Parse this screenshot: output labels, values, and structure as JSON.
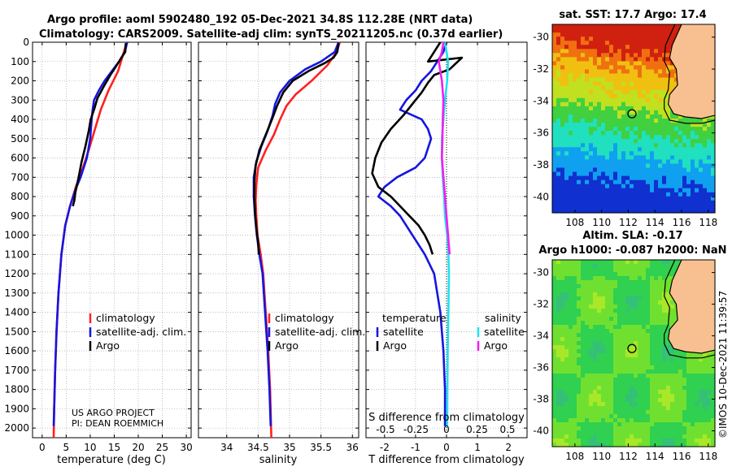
{
  "titles": {
    "line1": "Argo profile: aoml 5902480_192 05-Dec-2021 34.8S 112.28E (NRT data)",
    "line2": "Climatology: CARS2009. Satellite-adj clim: synTS_20211205.nc (0.37d earlier)"
  },
  "credits": {
    "project": "US ARGO PROJECT",
    "pi": "PI: DEAN ROEMMICH",
    "imos": "©IMOS 10-Dec-2021 11:39:57"
  },
  "colors": {
    "climatology": "#ff2020",
    "satellite": "#1515e0",
    "argo": "#000000",
    "sal_satellite": "#20e0f0",
    "sal_argo": "#f020f0",
    "land": "#f8c090"
  },
  "chart_data": [
    {
      "type": "line",
      "panel": "temperature",
      "xlabel": "temperature (deg C)",
      "ylabel": "depth",
      "xlim": [
        -2,
        31
      ],
      "ylim": [
        0,
        2050
      ],
      "y_reversed": true,
      "xticks": [
        "0",
        "5",
        "10",
        "15",
        "20",
        "25",
        "30"
      ],
      "yticks": [
        "0",
        "100",
        "200",
        "300",
        "400",
        "500",
        "600",
        "700",
        "800",
        "900",
        "1000",
        "1100",
        "1200",
        "1300",
        "1400",
        "1500",
        "1600",
        "1700",
        "1800",
        "1900",
        "2000"
      ],
      "legend": [
        "climatology",
        "satellite-adj. clim.",
        "Argo"
      ],
      "series": [
        {
          "name": "climatology",
          "points": [
            [
              17.6,
              0
            ],
            [
              17.0,
              50
            ],
            [
              15.8,
              150
            ],
            [
              13.8,
              250
            ],
            [
              12.2,
              350
            ],
            [
              11.0,
              450
            ],
            [
              9.8,
              550
            ],
            [
              8.5,
              650
            ],
            [
              7.0,
              750
            ],
            [
              5.8,
              850
            ],
            [
              4.8,
              950
            ],
            [
              4.0,
              1100
            ],
            [
              3.4,
              1300
            ],
            [
              3.0,
              1500
            ],
            [
              2.7,
              1700
            ],
            [
              2.5,
              1900
            ],
            [
              2.4,
              2050
            ]
          ]
        },
        {
          "name": "satellite-adj. clim.",
          "points": [
            [
              17.7,
              0
            ],
            [
              17.2,
              50
            ],
            [
              16.0,
              100
            ],
            [
              14.5,
              150
            ],
            [
              13.0,
              200
            ],
            [
              11.8,
              250
            ],
            [
              10.8,
              300
            ],
            [
              10.5,
              350
            ],
            [
              10.3,
              400
            ],
            [
              10.0,
              500
            ],
            [
              9.3,
              600
            ],
            [
              8.0,
              700
            ],
            [
              7.0,
              760
            ],
            [
              5.8,
              850
            ],
            [
              4.8,
              950
            ],
            [
              4.0,
              1100
            ],
            [
              3.4,
              1300
            ],
            [
              3.0,
              1500
            ],
            [
              2.7,
              1700
            ],
            [
              2.5,
              1900
            ],
            [
              2.4,
              1990
            ]
          ]
        },
        {
          "name": "Argo",
          "points": [
            [
              17.4,
              5
            ],
            [
              17.3,
              50
            ],
            [
              16.5,
              80
            ],
            [
              15.5,
              120
            ],
            [
              14.2,
              170
            ],
            [
              12.8,
              230
            ],
            [
              11.5,
              290
            ],
            [
              10.8,
              350
            ],
            [
              10.1,
              400
            ],
            [
              9.7,
              460
            ],
            [
              9.0,
              540
            ],
            [
              8.2,
              620
            ],
            [
              7.6,
              700
            ],
            [
              6.9,
              780
            ],
            [
              6.7,
              820
            ],
            [
              6.4,
              850
            ]
          ]
        }
      ]
    },
    {
      "type": "line",
      "panel": "salinity",
      "xlabel": "salinity",
      "ylabel": "depth",
      "xlim": [
        33.55,
        36.1
      ],
      "ylim": [
        0,
        2050
      ],
      "y_reversed": true,
      "xticks": [
        "34",
        "34.5",
        "35",
        "35.5",
        "36"
      ],
      "legend": [
        "climatology",
        "satellite-adj. clim.",
        "Argo"
      ],
      "series": [
        {
          "name": "climatology",
          "points": [
            [
              35.8,
              0
            ],
            [
              35.75,
              50
            ],
            [
              35.6,
              120
            ],
            [
              35.35,
              200
            ],
            [
              35.1,
              270
            ],
            [
              34.95,
              330
            ],
            [
              34.85,
              400
            ],
            [
              34.75,
              480
            ],
            [
              34.62,
              560
            ],
            [
              34.5,
              650
            ],
            [
              34.47,
              740
            ],
            [
              34.46,
              820
            ],
            [
              34.47,
              900
            ],
            [
              34.49,
              1000
            ],
            [
              34.54,
              1100
            ],
            [
              34.58,
              1200
            ],
            [
              34.62,
              1400
            ],
            [
              34.66,
              1600
            ],
            [
              34.69,
              1800
            ],
            [
              34.71,
              2050
            ]
          ]
        },
        {
          "name": "satellite-adj. clim.",
          "points": [
            [
              35.78,
              0
            ],
            [
              35.72,
              50
            ],
            [
              35.5,
              100
            ],
            [
              35.25,
              140
            ],
            [
              35.0,
              200
            ],
            [
              34.85,
              260
            ],
            [
              34.77,
              320
            ],
            [
              34.73,
              380
            ],
            [
              34.65,
              460
            ],
            [
              34.55,
              540
            ],
            [
              34.47,
              620
            ],
            [
              34.43,
              700
            ],
            [
              34.43,
              800
            ],
            [
              34.45,
              900
            ],
            [
              34.48,
              1000
            ],
            [
              34.52,
              1100
            ],
            [
              34.57,
              1200
            ],
            [
              34.61,
              1400
            ],
            [
              34.65,
              1600
            ],
            [
              34.68,
              1800
            ],
            [
              34.7,
              1990
            ]
          ]
        },
        {
          "name": "Argo",
          "points": [
            [
              35.78,
              5
            ],
            [
              35.76,
              50
            ],
            [
              35.7,
              80
            ],
            [
              35.55,
              110
            ],
            [
              35.3,
              150
            ],
            [
              35.05,
              200
            ],
            [
              34.9,
              260
            ],
            [
              34.8,
              330
            ],
            [
              34.72,
              400
            ],
            [
              34.62,
              480
            ],
            [
              34.52,
              560
            ],
            [
              34.46,
              640
            ],
            [
              34.44,
              720
            ],
            [
              34.44,
              800
            ],
            [
              34.45,
              880
            ],
            [
              34.47,
              960
            ],
            [
              34.5,
              1040
            ],
            [
              34.51,
              1100
            ]
          ]
        }
      ]
    },
    {
      "type": "line",
      "panel": "difference",
      "xlabel": "T difference from climatology",
      "xlabel_top": "S difference from climatology",
      "ylabel": "depth",
      "xlim": [
        -2.6,
        2.6
      ],
      "ylim": [
        0,
        2050
      ],
      "y_reversed": true,
      "xticks": [
        "-2",
        "-1",
        "0",
        "1",
        "2"
      ],
      "xticks_top": [
        "-0.5",
        "-0.25",
        "0",
        "0.25",
        "0.5"
      ],
      "legend_headers": [
        "temperature",
        "salinity"
      ],
      "legend": [
        "satellite",
        "Argo",
        "satellite",
        "Argo"
      ],
      "series": [
        {
          "name": "temperature satellite",
          "points": [
            [
              0,
              0
            ],
            [
              -0.1,
              50
            ],
            [
              -0.3,
              100
            ],
            [
              -0.5,
              150
            ],
            [
              -0.8,
              200
            ],
            [
              -1.0,
              250
            ],
            [
              -1.3,
              300
            ],
            [
              -1.5,
              350
            ],
            [
              -0.8,
              400
            ],
            [
              -0.6,
              450
            ],
            [
              -0.5,
              500
            ],
            [
              -0.7,
              600
            ],
            [
              -1.0,
              650
            ],
            [
              -1.6,
              700
            ],
            [
              -2.0,
              750
            ],
            [
              -2.2,
              800
            ],
            [
              -1.8,
              850
            ],
            [
              -1.5,
              900
            ],
            [
              -1.3,
              950
            ],
            [
              -1.1,
              1000
            ],
            [
              -0.7,
              1100
            ],
            [
              -0.4,
              1200
            ],
            [
              -0.2,
              1400
            ],
            [
              -0.1,
              1600
            ],
            [
              -0.05,
              1800
            ],
            [
              -0.05,
              1990
            ]
          ]
        },
        {
          "name": "temperature Argo",
          "points": [
            [
              -0.2,
              0
            ],
            [
              -0.4,
              50
            ],
            [
              -0.6,
              100
            ],
            [
              0.5,
              80
            ],
            [
              0.1,
              140
            ],
            [
              -0.4,
              170
            ],
            [
              -0.6,
              210
            ],
            [
              -0.8,
              260
            ],
            [
              -1.1,
              320
            ],
            [
              -1.4,
              380
            ],
            [
              -1.8,
              450
            ],
            [
              -2.1,
              520
            ],
            [
              -2.3,
              600
            ],
            [
              -2.4,
              680
            ],
            [
              -2.2,
              750
            ],
            [
              -1.8,
              800
            ],
            [
              -1.5,
              850
            ],
            [
              -1.2,
              900
            ],
            [
              -0.9,
              950
            ],
            [
              -0.7,
              1000
            ],
            [
              -0.55,
              1050
            ],
            [
              -0.45,
              1100
            ]
          ]
        },
        {
          "name": "salinity satellite",
          "points": [
            [
              -0.05,
              0
            ],
            [
              0,
              50
            ],
            [
              0.05,
              100
            ],
            [
              0.02,
              200
            ],
            [
              -0.05,
              300
            ],
            [
              -0.1,
              400
            ],
            [
              -0.15,
              500
            ],
            [
              -0.15,
              600
            ],
            [
              -0.12,
              700
            ],
            [
              -0.08,
              800
            ],
            [
              -0.05,
              900
            ],
            [
              0.02,
              1000
            ],
            [
              0.06,
              1100
            ],
            [
              0.08,
              1200
            ],
            [
              0.06,
              1400
            ],
            [
              0.04,
              1600
            ],
            [
              0.03,
              1800
            ],
            [
              0.02,
              1990
            ]
          ]
        },
        {
          "name": "salinity Argo",
          "points": [
            [
              -0.1,
              0
            ],
            [
              -0.15,
              50
            ],
            [
              -0.25,
              100
            ],
            [
              -0.2,
              150
            ],
            [
              -0.15,
              200
            ],
            [
              -0.1,
              300
            ],
            [
              -0.12,
              400
            ],
            [
              -0.13,
              500
            ],
            [
              -0.15,
              600
            ],
            [
              -0.1,
              700
            ],
            [
              -0.05,
              800
            ],
            [
              0,
              900
            ],
            [
              0.05,
              1000
            ],
            [
              0.1,
              1100
            ]
          ]
        }
      ]
    },
    {
      "type": "heatmap",
      "panel": "sst_map",
      "title": "sat. SST: 17.7 Argo: 17.4",
      "xlim": [
        106.3,
        118.5
      ],
      "ylim": [
        -41,
        -29.2
      ],
      "xticks": [
        "108",
        "110",
        "112",
        "114",
        "116",
        "118"
      ],
      "yticks": [
        "-30",
        "-32",
        "-34",
        "-36",
        "-38",
        "-40"
      ],
      "argo_position": [
        112.28,
        -34.8
      ]
    },
    {
      "type": "heatmap",
      "panel": "sla_map",
      "title": "Altim. SLA: -0.17",
      "subtitle": "Argo h1000: -0.087 h2000: NaN",
      "xlim": [
        106.3,
        118.5
      ],
      "ylim": [
        -41,
        -29.2
      ],
      "xticks": [
        "108",
        "110",
        "112",
        "114",
        "116",
        "118"
      ],
      "yticks": [
        "-30",
        "-32",
        "-34",
        "-36",
        "-38",
        "-40"
      ],
      "argo_position": [
        112.28,
        -34.8
      ]
    }
  ]
}
